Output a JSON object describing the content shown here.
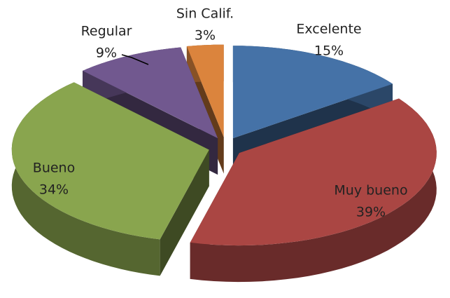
{
  "chart_data": {
    "type": "pie",
    "categories": [
      "Excelente",
      "Muy bueno",
      "Bueno",
      "Regular",
      "Sin Calif."
    ],
    "values": [
      15,
      39,
      34,
      9,
      3
    ],
    "value_labels": [
      "15%",
      "39%",
      "34%",
      "9%",
      "3%"
    ],
    "colors": [
      "#4572a7",
      "#aa4643",
      "#89a54e",
      "#71588f",
      "#db843d"
    ],
    "three_d": true,
    "exploded": true
  }
}
